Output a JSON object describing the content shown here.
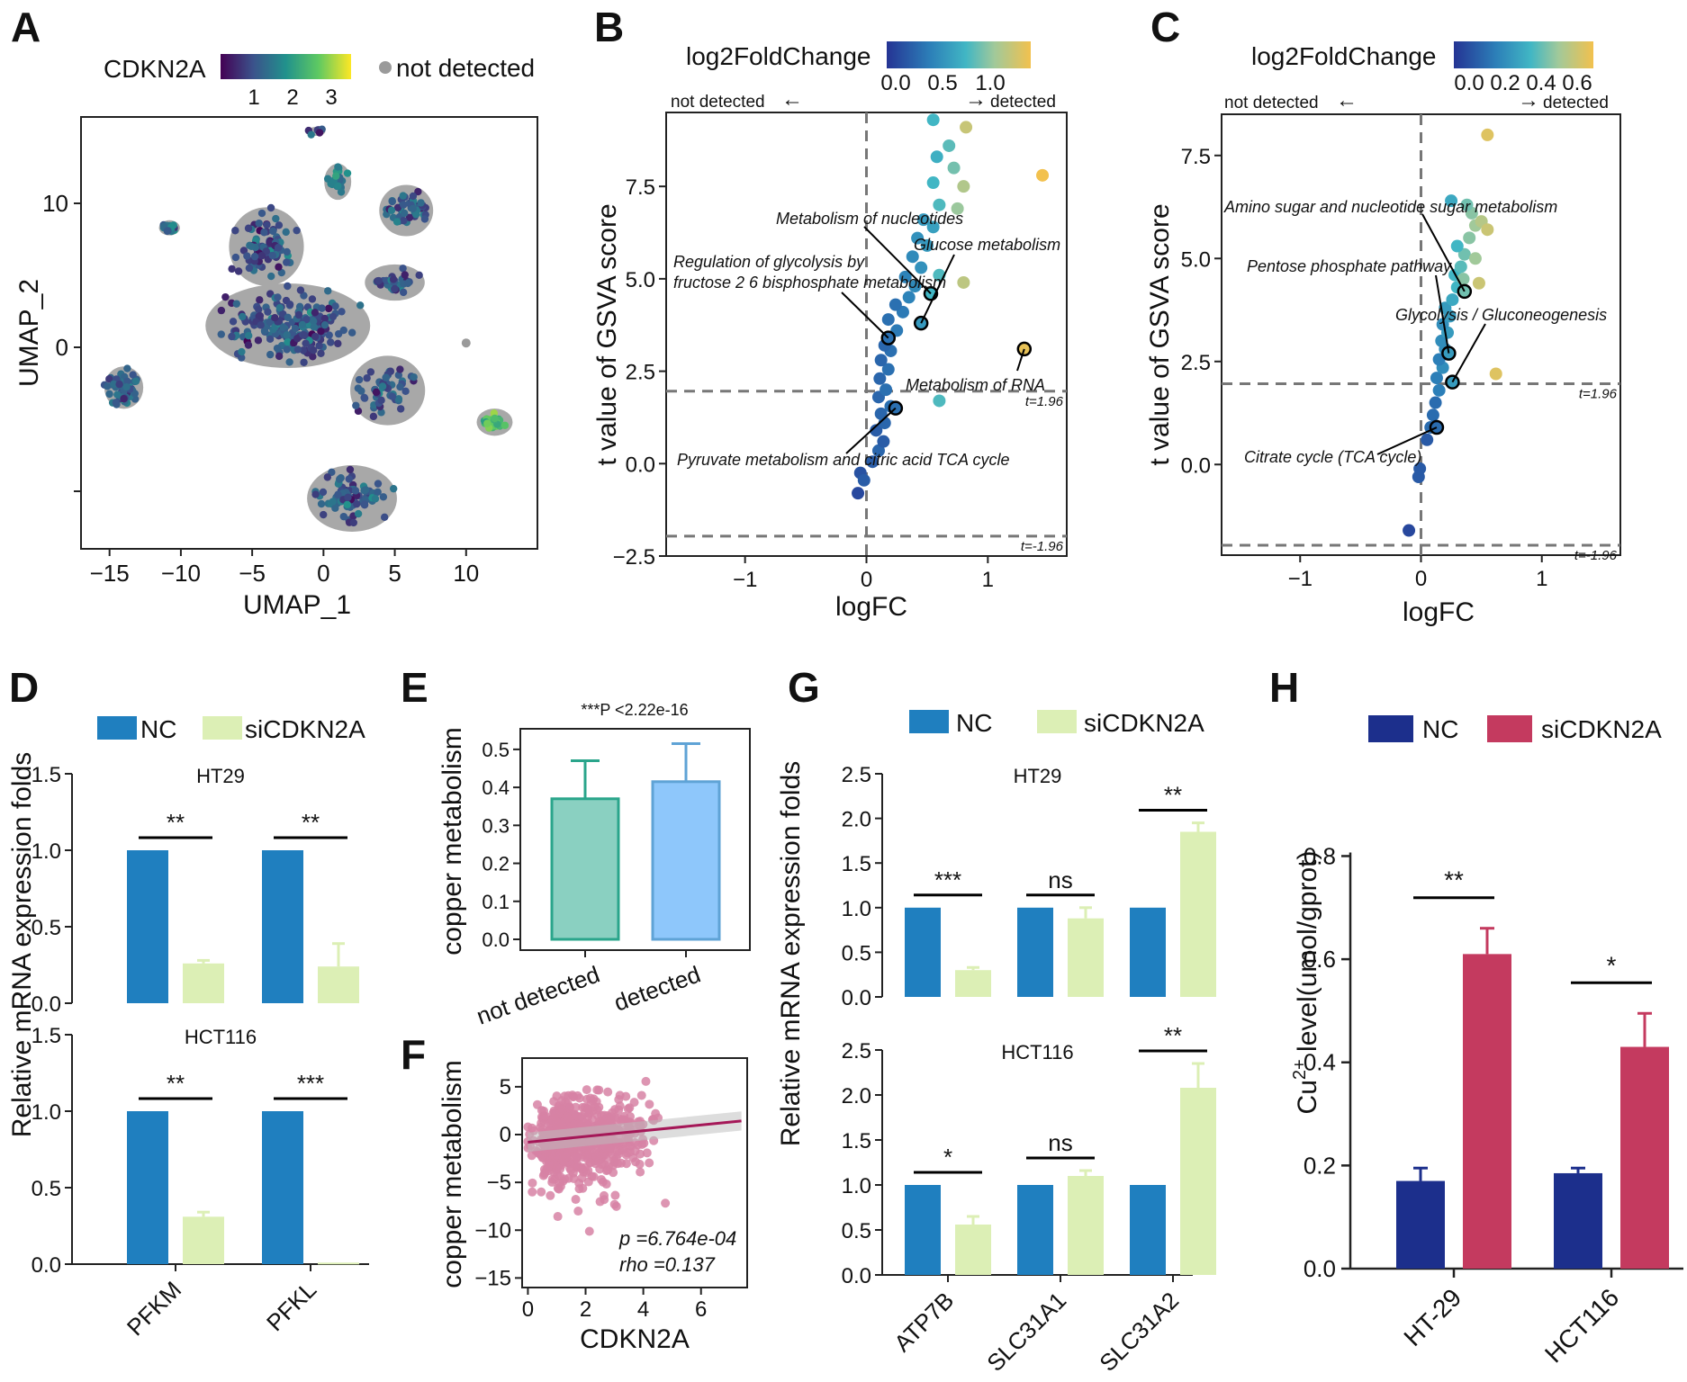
{
  "colors": {
    "nc_blue": "#1f7fbf",
    "si_green": "#dcefb5",
    "nc_navy": "#1c2f8c",
    "si_crimson": "#c43a5f",
    "teal": "#8ad0c1",
    "sky": "#8ec7fb",
    "scatter_pink": "#d783a5",
    "fit_line": "#a51858",
    "grey": "#999999"
  },
  "chart_data": [
    {
      "panel": "A",
      "type": "scatter",
      "title": "",
      "xlabel": "UMAP_1",
      "ylabel": "UMAP_2",
      "xticks": [
        "−15",
        "−10",
        "−5",
        "0",
        "5",
        "10"
      ],
      "yticks": [
        "10",
        "0",
        ""
      ],
      "xlim": [
        -17,
        15
      ],
      "ylim": [
        -14,
        16
      ],
      "legend": {
        "color_title": "CDKN2A",
        "color_ticks": [
          "1",
          "2",
          "3"
        ],
        "grey_label": "not detected"
      },
      "clusters": [
        {
          "x": -14.0,
          "y": -2.8,
          "rx": 1.3,
          "ry": 1.4,
          "n": 60,
          "mean": 1.4
        },
        {
          "x": -10.8,
          "y": 8.3,
          "rx": 0.7,
          "ry": 0.5,
          "n": 12,
          "mean": 1.6
        },
        {
          "x": -4.0,
          "y": 7.0,
          "rx": 2.5,
          "ry": 2.6,
          "n": 90,
          "mean": 1.2
        },
        {
          "x": -2.5,
          "y": 1.5,
          "rx": 5.5,
          "ry": 2.8,
          "n": 200,
          "mean": 1.3
        },
        {
          "x": 1.0,
          "y": 11.5,
          "rx": 0.9,
          "ry": 1.2,
          "n": 20,
          "mean": 1.8
        },
        {
          "x": -0.5,
          "y": 15.0,
          "rx": 0.6,
          "ry": 0.3,
          "n": 6,
          "mean": 1.2
        },
        {
          "x": 5.8,
          "y": 9.5,
          "rx": 1.8,
          "ry": 1.7,
          "n": 50,
          "mean": 1.3
        },
        {
          "x": 5.0,
          "y": 4.5,
          "rx": 2.0,
          "ry": 1.2,
          "n": 30,
          "mean": 1.3
        },
        {
          "x": 4.5,
          "y": -3.0,
          "rx": 2.5,
          "ry": 2.3,
          "n": 55,
          "mean": 1.4
        },
        {
          "x": 12.0,
          "y": -5.2,
          "rx": 1.2,
          "ry": 0.9,
          "n": 30,
          "mean": 2.6
        },
        {
          "x": 2.0,
          "y": -10.5,
          "rx": 3.0,
          "ry": 2.2,
          "n": 80,
          "mean": 1.3
        }
      ],
      "extra_points": [
        {
          "x": 10.0,
          "y": 0.3,
          "value": 0
        }
      ]
    },
    {
      "panel": "B",
      "type": "scatter",
      "xlabel": "logFC",
      "ylabel": "t value of GSVA score",
      "xlim": [
        -1.65,
        1.65
      ],
      "ylim": [
        -2.5,
        9.5
      ],
      "xticks": [
        -1,
        0,
        1
      ],
      "yticks": [
        -2.5,
        0.0,
        2.5,
        5.0,
        7.5
      ],
      "colorbar": {
        "title": "log2FoldChange",
        "ticks": [
          "0.0",
          "0.5",
          "1.0"
        ],
        "range": [
          -0.2,
          1.3
        ]
      },
      "direction": {
        "left": "not detected",
        "right": "detected"
      },
      "thresholds": {
        "upper": 1.96,
        "lower": -1.96,
        "upper_label": "t=1.96",
        "lower_label": "t=-1.96"
      },
      "points": [
        {
          "x": -0.07,
          "y": -0.8,
          "c": -0.1
        },
        {
          "x": -0.05,
          "y": -0.25,
          "c": -0.05
        },
        {
          "x": -0.02,
          "y": -0.45,
          "c": 0.0
        },
        {
          "x": 0.05,
          "y": 0.05,
          "c": 0.0
        },
        {
          "x": 0.1,
          "y": 0.35,
          "c": 0.05
        },
        {
          "x": 0.14,
          "y": 0.6,
          "c": 0.0
        },
        {
          "x": 0.08,
          "y": 0.9,
          "c": 0.0
        },
        {
          "x": 0.15,
          "y": 1.1,
          "c": 0.05
        },
        {
          "x": 0.12,
          "y": 1.35,
          "c": 0.05
        },
        {
          "x": 0.2,
          "y": 1.55,
          "c": 0.1
        },
        {
          "x": 0.1,
          "y": 1.8,
          "c": 0.05
        },
        {
          "x": 0.16,
          "y": 2.0,
          "c": 0.1
        },
        {
          "x": 0.11,
          "y": 2.3,
          "c": 0.05
        },
        {
          "x": 0.18,
          "y": 2.55,
          "c": 0.1
        },
        {
          "x": 0.12,
          "y": 2.8,
          "c": 0.05
        },
        {
          "x": 0.2,
          "y": 3.05,
          "c": 0.1
        },
        {
          "x": 0.15,
          "y": 3.2,
          "c": 0.05
        },
        {
          "x": 0.25,
          "y": 3.6,
          "c": 0.15
        },
        {
          "x": 0.18,
          "y": 3.9,
          "c": 0.1
        },
        {
          "x": 0.3,
          "y": 4.1,
          "c": 0.15
        },
        {
          "x": 0.24,
          "y": 4.3,
          "c": 0.1
        },
        {
          "x": 0.35,
          "y": 4.5,
          "c": 0.2
        },
        {
          "x": 0.4,
          "y": 4.8,
          "c": 0.25
        },
        {
          "x": 0.32,
          "y": 5.05,
          "c": 0.2
        },
        {
          "x": 0.45,
          "y": 5.3,
          "c": 0.3
        },
        {
          "x": 0.38,
          "y": 5.6,
          "c": 0.25
        },
        {
          "x": 0.5,
          "y": 5.9,
          "c": 0.35
        },
        {
          "x": 0.42,
          "y": 6.1,
          "c": 0.3
        },
        {
          "x": 0.55,
          "y": 6.4,
          "c": 0.4
        },
        {
          "x": 0.47,
          "y": 6.6,
          "c": 0.35
        },
        {
          "x": 0.6,
          "y": 7.0,
          "c": 0.6
        },
        {
          "x": 0.75,
          "y": 6.9,
          "c": 0.9
        },
        {
          "x": 0.55,
          "y": 7.6,
          "c": 0.55
        },
        {
          "x": 0.8,
          "y": 7.5,
          "c": 1.0
        },
        {
          "x": 0.72,
          "y": 8.0,
          "c": 0.75
        },
        {
          "x": 0.58,
          "y": 8.3,
          "c": 0.5
        },
        {
          "x": 0.68,
          "y": 8.6,
          "c": 0.65
        },
        {
          "x": 0.82,
          "y": 9.1,
          "c": 1.1
        },
        {
          "x": 0.55,
          "y": 9.3,
          "c": 0.55
        },
        {
          "x": 1.45,
          "y": 7.8,
          "c": 1.3
        },
        {
          "x": 0.8,
          "y": 4.9,
          "c": 1.05
        },
        {
          "x": 0.6,
          "y": 5.1,
          "c": 0.6
        },
        {
          "x": 0.6,
          "y": 1.7,
          "c": 0.6
        }
      ],
      "highlighted": [
        {
          "x": 0.53,
          "y": 4.6,
          "c": 0.55,
          "label": "Metabolism of nucleotides"
        },
        {
          "x": 0.45,
          "y": 3.8,
          "c": 0.35,
          "label": "Glucose metabolism"
        },
        {
          "x": 0.18,
          "y": 3.4,
          "c": 0.1,
          "label": "Regulation of glycolysis by fructose 2 6 bisphosphate metabolism"
        },
        {
          "x": 1.3,
          "y": 3.1,
          "c": 1.25,
          "label": "Metabolism of RNA"
        },
        {
          "x": 0.24,
          "y": 1.5,
          "c": 0.1,
          "label": "Pyruvate metabolism and citric acid TCA cycle"
        }
      ],
      "annotations": {
        "nucleotides": "Metabolism of nucleotides",
        "glucose": "Glucose metabolism",
        "glycolysis_line1": "Regulation of glycolysis by",
        "glycolysis_line2": "fructose 2 6 bisphosphate metabolism",
        "rna": "Metabolism of RNA",
        "pyruvate": "Pyruvate metabolism and citric acid TCA cycle"
      }
    },
    {
      "panel": "C",
      "type": "scatter",
      "xlabel": "logFC",
      "ylabel": "t value of GSVA score",
      "xlim": [
        -1.65,
        1.65
      ],
      "ylim": [
        -2.2,
        8.5
      ],
      "xticks": [
        -1,
        0,
        1
      ],
      "yticks": [
        0.0,
        2.5,
        5.0,
        7.5
      ],
      "colorbar": {
        "title": "log2FoldChange",
        "ticks": [
          "0.0",
          "0.2",
          "0.4",
          "0.6"
        ],
        "range": [
          -0.1,
          0.7
        ]
      },
      "direction": {
        "left": "not detected",
        "right": "detected"
      },
      "thresholds": {
        "upper": 1.96,
        "lower": -1.96,
        "upper_label": "t=1.96",
        "lower_label": "t=-1.96"
      },
      "points": [
        {
          "x": -0.1,
          "y": -1.6,
          "c": -0.05
        },
        {
          "x": -0.02,
          "y": -0.3,
          "c": 0.0
        },
        {
          "x": -0.01,
          "y": -0.1,
          "c": 0.0
        },
        {
          "x": 0.05,
          "y": 0.6,
          "c": 0.0
        },
        {
          "x": 0.08,
          "y": 0.9,
          "c": 0.05
        },
        {
          "x": 0.1,
          "y": 1.2,
          "c": 0.05
        },
        {
          "x": 0.12,
          "y": 1.5,
          "c": 0.05
        },
        {
          "x": 0.15,
          "y": 1.8,
          "c": 0.1
        },
        {
          "x": 0.13,
          "y": 2.1,
          "c": 0.1
        },
        {
          "x": 0.18,
          "y": 2.35,
          "c": 0.15
        },
        {
          "x": 0.15,
          "y": 2.55,
          "c": 0.1
        },
        {
          "x": 0.2,
          "y": 2.8,
          "c": 0.15
        },
        {
          "x": 0.17,
          "y": 3.0,
          "c": 0.15
        },
        {
          "x": 0.22,
          "y": 3.2,
          "c": 0.2
        },
        {
          "x": 0.18,
          "y": 3.4,
          "c": 0.15
        },
        {
          "x": 0.24,
          "y": 3.6,
          "c": 0.2
        },
        {
          "x": 0.2,
          "y": 3.8,
          "c": 0.2
        },
        {
          "x": 0.26,
          "y": 4.0,
          "c": 0.25
        },
        {
          "x": 0.3,
          "y": 4.3,
          "c": 0.3
        },
        {
          "x": 0.28,
          "y": 4.6,
          "c": 0.3
        },
        {
          "x": 0.33,
          "y": 4.8,
          "c": 0.35
        },
        {
          "x": 0.36,
          "y": 5.1,
          "c": 0.4
        },
        {
          "x": 0.3,
          "y": 5.3,
          "c": 0.3
        },
        {
          "x": 0.4,
          "y": 5.5,
          "c": 0.45
        },
        {
          "x": 0.45,
          "y": 5.8,
          "c": 0.5
        },
        {
          "x": 0.42,
          "y": 6.1,
          "c": 0.45
        },
        {
          "x": 0.5,
          "y": 5.9,
          "c": 0.55
        },
        {
          "x": 0.55,
          "y": 5.7,
          "c": 0.6
        },
        {
          "x": 0.38,
          "y": 6.3,
          "c": 0.4
        },
        {
          "x": 0.25,
          "y": 6.4,
          "c": 0.25
        },
        {
          "x": 0.55,
          "y": 8.0,
          "c": 0.65
        },
        {
          "x": 0.62,
          "y": 2.2,
          "c": 0.65
        },
        {
          "x": 0.35,
          "y": 4.5,
          "c": 0.45
        },
        {
          "x": 0.48,
          "y": 4.4,
          "c": 0.6
        },
        {
          "x": 0.45,
          "y": 5.0,
          "c": 0.5
        }
      ],
      "highlighted": [
        {
          "x": 0.36,
          "y": 4.2,
          "c": 0.4,
          "label": "Amino sugar and nucleotide sugar metabolism"
        },
        {
          "x": 0.23,
          "y": 2.7,
          "c": 0.2,
          "label": "Pentose phosphate pathway"
        },
        {
          "x": 0.26,
          "y": 2.0,
          "c": 0.2,
          "label": "Glycolysis / Gluconeogenesis"
        },
        {
          "x": 0.13,
          "y": 0.9,
          "c": 0.05,
          "label": "Citrate cycle (TCA cycle)"
        }
      ],
      "annotations": {
        "amino": "Amino sugar and nucleotide sugar metabolism",
        "pentose": "Pentose phosphate pathway",
        "glycolysis": "Glycolysis / Gluconeogenesis",
        "citrate": "Citrate cycle (TCA cycle)"
      }
    },
    {
      "panel": "D",
      "type": "bar",
      "ylabel": "Relative mRNA expression folds",
      "legend": [
        "NC",
        "siCDKN2A"
      ],
      "categories": [
        "PFKM",
        "PFKL"
      ],
      "ylim": [
        0,
        1.5
      ],
      "yticks": [
        "0.0",
        "0.5",
        "1.0",
        "1.5"
      ],
      "subplots": [
        {
          "title": "HT29",
          "NC": [
            1.0,
            1.0
          ],
          "NC_err": [
            0,
            0
          ],
          "siCDKN2A": [
            0.26,
            0.24
          ],
          "si_err": [
            0.02,
            0.15
          ],
          "sig": [
            "**",
            "**"
          ]
        },
        {
          "title": "HCT116",
          "NC": [
            1.0,
            1.0
          ],
          "NC_err": [
            0,
            0
          ],
          "siCDKN2A": [
            0.31,
            0.01
          ],
          "si_err": [
            0.03,
            0.0
          ],
          "sig": [
            "**",
            "***"
          ]
        }
      ]
    },
    {
      "panel": "E",
      "type": "bar",
      "title": "***P <2.22e-16",
      "ylabel": "copper metabolism",
      "categories": [
        "not detected",
        "detected"
      ],
      "values": [
        0.37,
        0.415
      ],
      "errors": [
        0.1,
        0.1
      ],
      "ylim": [
        0,
        0.54
      ],
      "yticks": [
        "0.0",
        "0.1",
        "0.2",
        "0.3",
        "0.4",
        "0.5"
      ]
    },
    {
      "panel": "F",
      "type": "scatter",
      "xlabel": "CDKN2A",
      "ylabel": "copper metabolism",
      "xlim": [
        -0.2,
        7.6
      ],
      "ylim": [
        -16,
        8
      ],
      "xticks": [
        "0",
        "2",
        "4",
        "6"
      ],
      "yticks": [
        "5",
        "0",
        "−5",
        "−10",
        "−15"
      ],
      "fit": {
        "intercept": -0.8,
        "slope": 0.3
      },
      "stats": {
        "p": "p =6.764e-04",
        "rho": "rho =0.137"
      },
      "n_points": 700,
      "seed": 7
    },
    {
      "panel": "G",
      "type": "bar",
      "ylabel": "Relative mRNA expression folds",
      "legend": [
        "NC",
        "siCDKN2A"
      ],
      "categories": [
        "ATP7B",
        "SLC31A1",
        "SLC31A2"
      ],
      "ylim": [
        0,
        2.5
      ],
      "yticks": [
        "0.0",
        "0.5",
        "1.0",
        "1.5",
        "2.0",
        "2.5"
      ],
      "subplots": [
        {
          "title": "HT29",
          "NC": [
            1.0,
            1.0,
            1.0
          ],
          "NC_err": [
            0,
            0,
            0
          ],
          "siCDKN2A": [
            0.3,
            0.88,
            1.85
          ],
          "si_err": [
            0.03,
            0.12,
            0.1
          ],
          "sig": [
            "***",
            "ns",
            "**"
          ]
        },
        {
          "title": "HCT116",
          "NC": [
            1.0,
            1.0,
            1.0
          ],
          "NC_err": [
            0,
            0,
            0
          ],
          "siCDKN2A": [
            0.56,
            1.1,
            2.08
          ],
          "si_err": [
            0.09,
            0.06,
            0.27
          ],
          "sig": [
            "*",
            "ns",
            "**"
          ]
        }
      ]
    },
    {
      "panel": "H",
      "type": "bar",
      "ylabel_main": "Cu",
      "ylabel_sup": "2+",
      "ylabel_rest": " level(umol/gprot)",
      "legend": [
        "NC",
        "siCDKN2A"
      ],
      "categories": [
        "HT-29",
        "HCT116"
      ],
      "NC": [
        0.17,
        0.185
      ],
      "NC_err": [
        0.025,
        0.01
      ],
      "siCDKN2A": [
        0.61,
        0.43
      ],
      "si_err": [
        0.05,
        0.065
      ],
      "sig": [
        "**",
        "*"
      ],
      "ylim": [
        0,
        0.82
      ],
      "yticks": [
        "0.0",
        "0.2",
        "0.4",
        "0.6",
        "0.8"
      ]
    }
  ]
}
